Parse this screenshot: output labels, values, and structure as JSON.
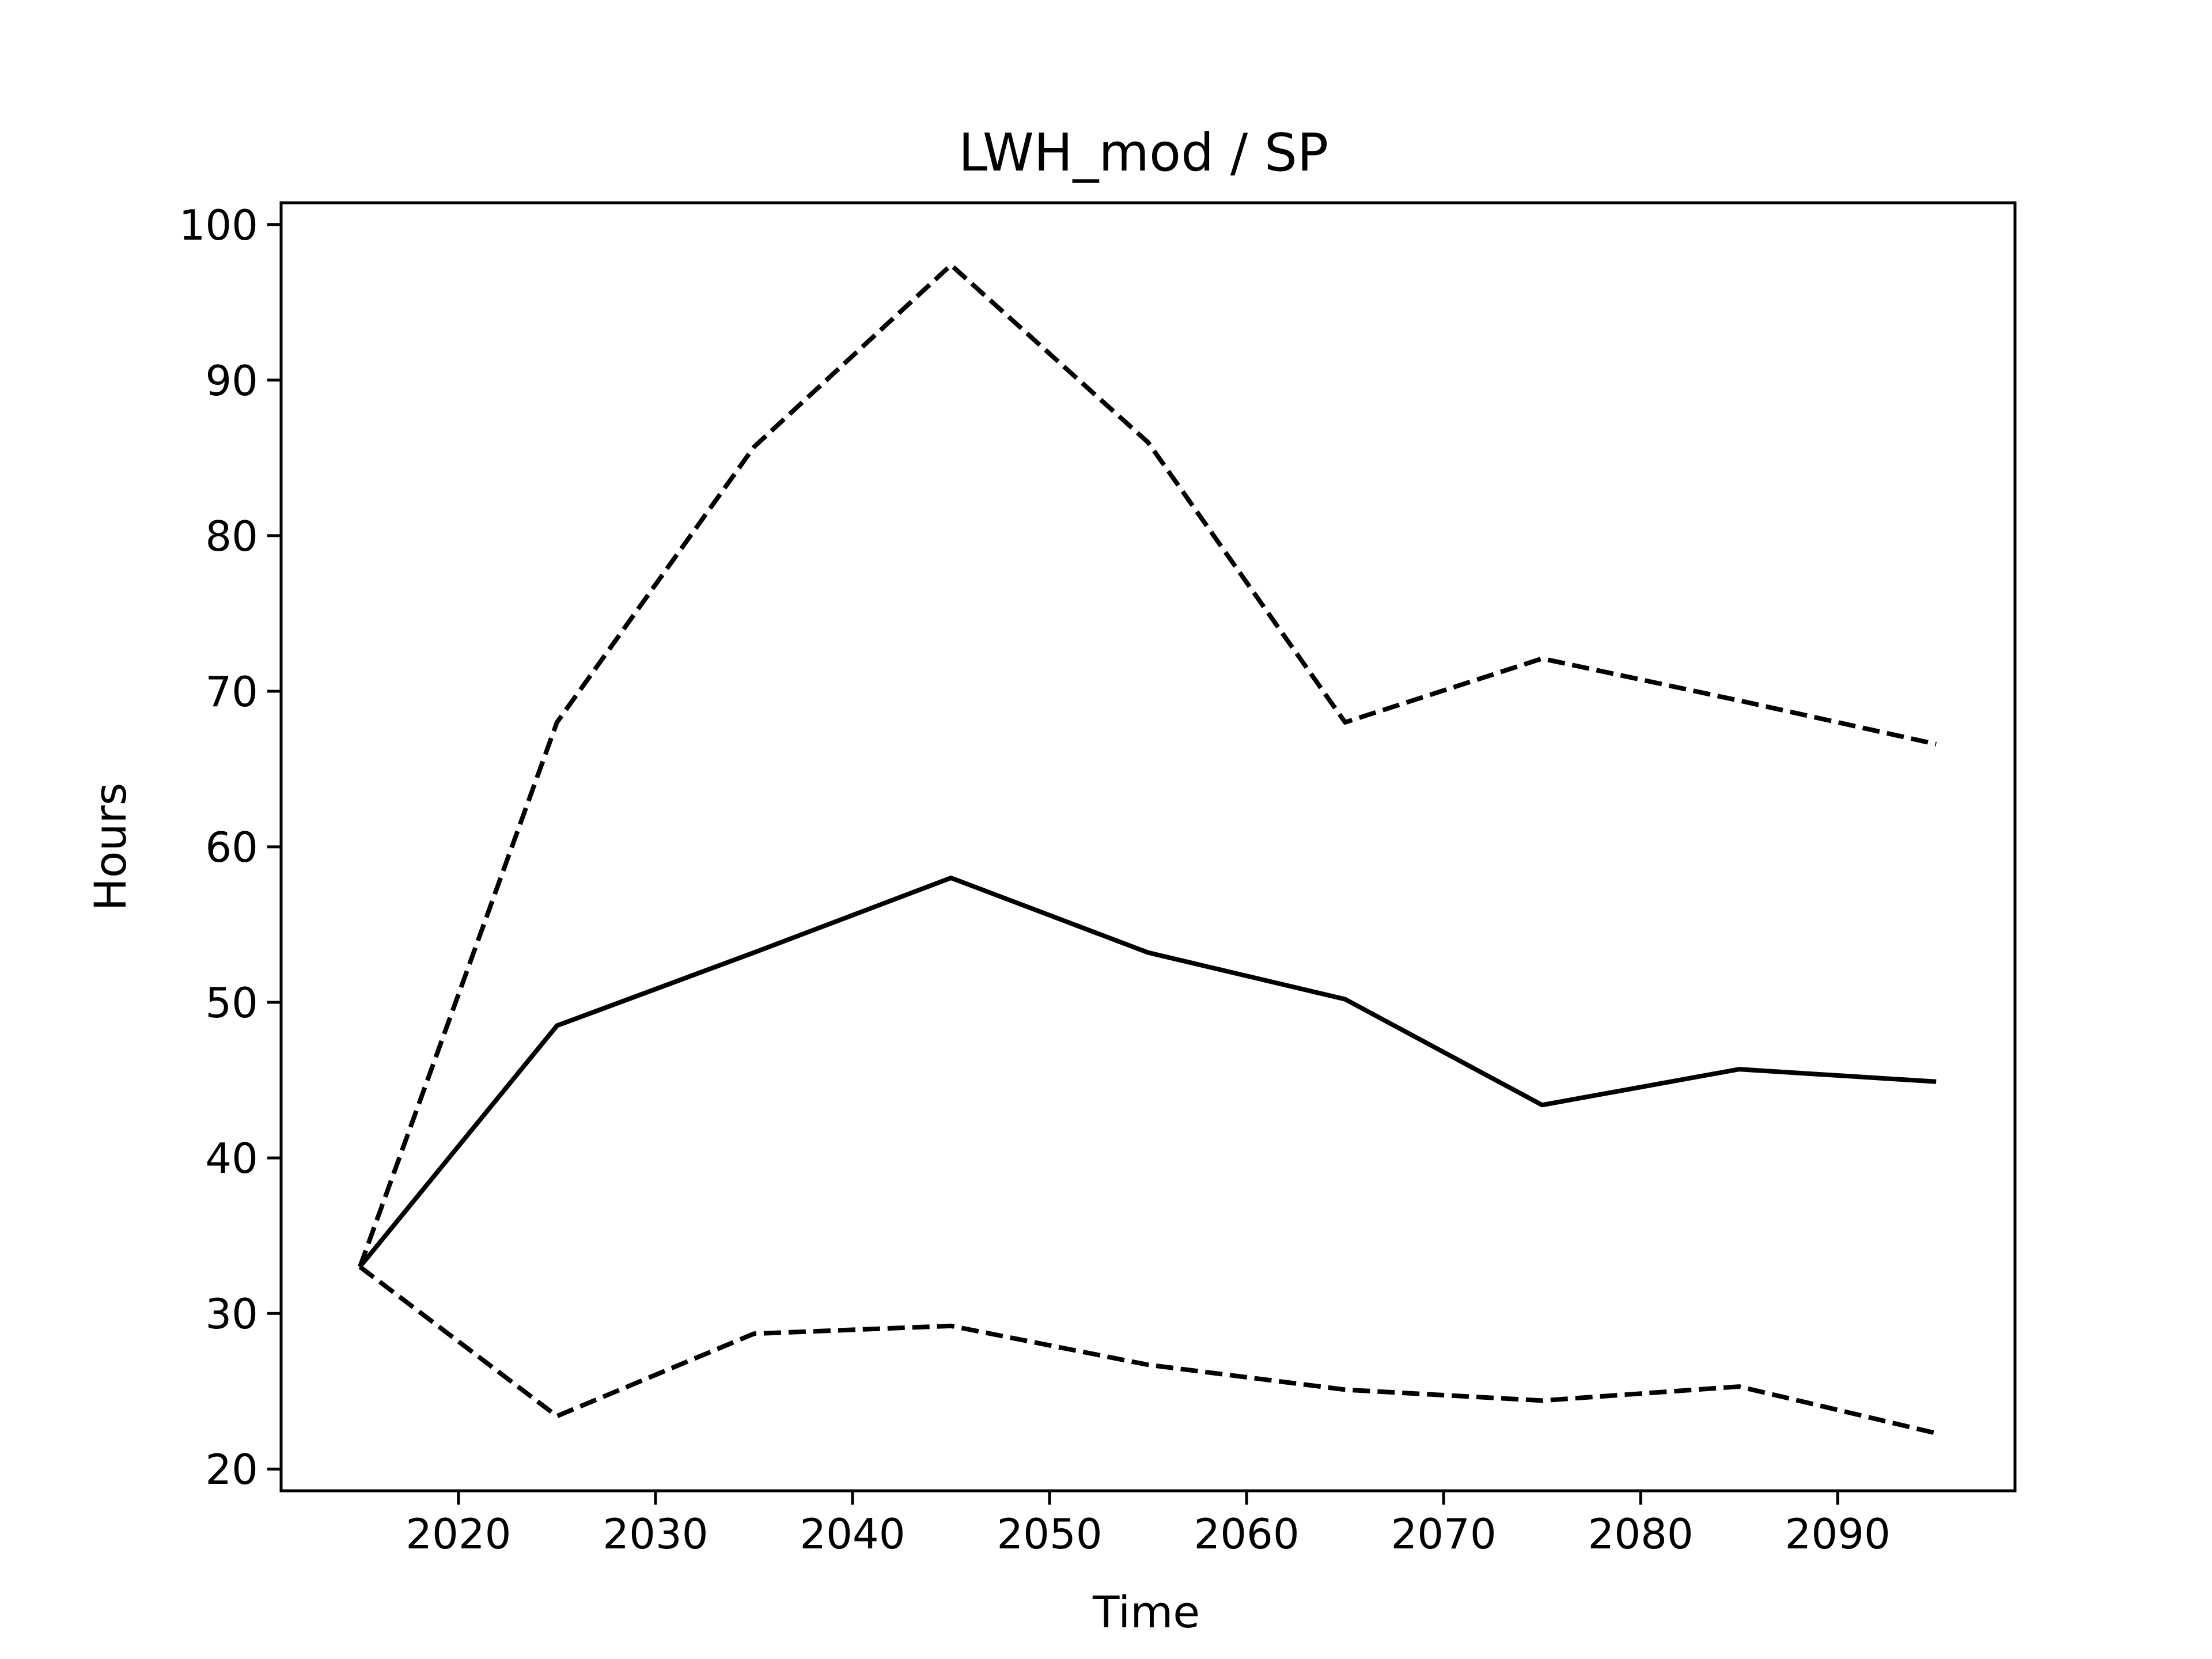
{
  "chart_data": {
    "type": "line",
    "title": "LWH_mod / SP",
    "xlabel": "Time",
    "ylabel": "Hours",
    "xlim": [
      2011,
      2099
    ],
    "ylim": [
      18.6,
      101.4
    ],
    "xticks": [
      2020,
      2030,
      2040,
      2050,
      2060,
      2070,
      2080,
      2090
    ],
    "yticks": [
      20,
      30,
      40,
      50,
      60,
      70,
      80,
      90,
      100
    ],
    "grid": false,
    "x": [
      2015,
      2025,
      2035,
      2045,
      2055,
      2065,
      2075,
      2085,
      2095
    ],
    "series": [
      {
        "style": "solid",
        "color": "#000000",
        "values": [
          33.0,
          48.5,
          53.2,
          58.0,
          53.2,
          50.2,
          43.4,
          45.7,
          44.9
        ]
      },
      {
        "style": "dashed",
        "color": "#000000",
        "values": [
          33.0,
          68.0,
          85.7,
          97.4,
          86.0,
          68.0,
          72.1,
          69.4,
          66.6
        ]
      },
      {
        "style": "dashed",
        "color": "#000000",
        "values": [
          33.0,
          23.4,
          28.7,
          29.2,
          26.7,
          25.1,
          24.4,
          25.3,
          22.3
        ]
      }
    ]
  }
}
